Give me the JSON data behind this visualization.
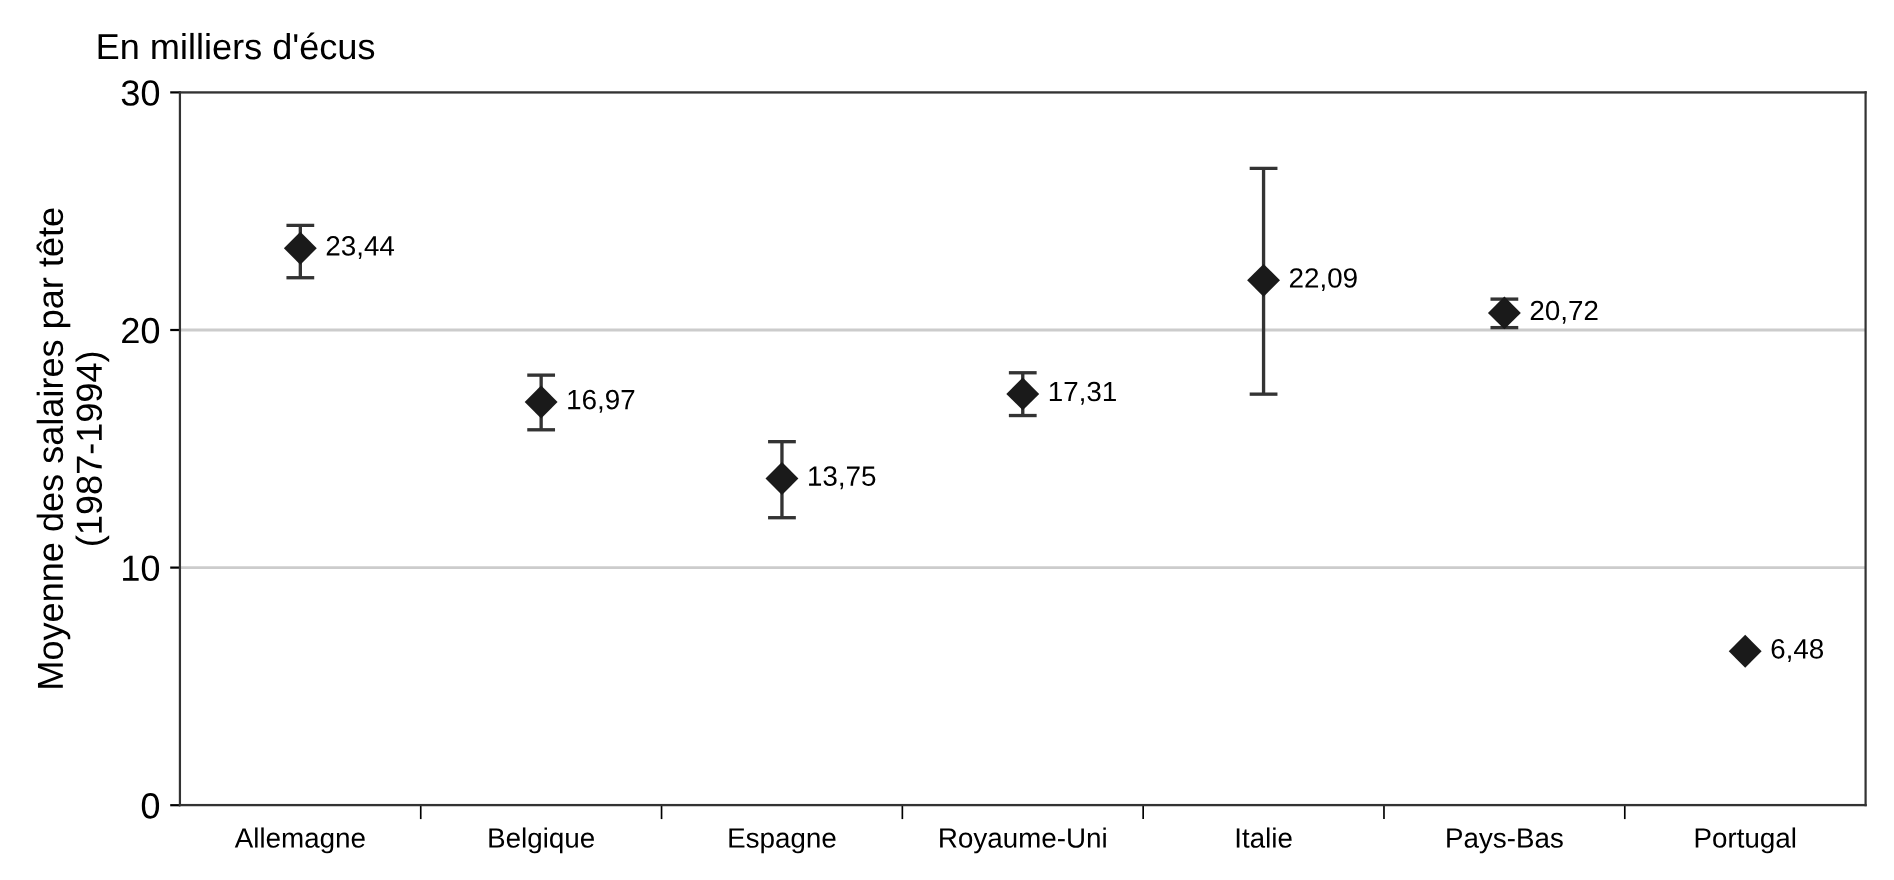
{
  "chart_data": {
    "type": "scatter",
    "title": "En milliers d'écus",
    "ylabel": "Moyenne des salaires par tête\n(1987-1994)",
    "categories": [
      "Allemagne",
      "Belgique",
      "Espagne",
      "Royaume-Uni",
      "Italie",
      "Pays-Bas",
      "Portugal"
    ],
    "values": [
      23.44,
      16.97,
      13.75,
      17.31,
      22.09,
      20.72,
      6.48
    ],
    "value_labels": [
      "23,44",
      "16,97",
      "13,75",
      "17,31",
      "22,09",
      "20,72",
      "6,48"
    ],
    "errors": [
      [
        22.2,
        24.4
      ],
      [
        15.8,
        18.1
      ],
      [
        12.1,
        15.3
      ],
      [
        16.4,
        18.2
      ],
      [
        17.3,
        26.8
      ],
      [
        20.1,
        21.3
      ],
      null
    ],
    "color": "#1a1a1a",
    "marker": "diamond",
    "ylim": [
      0,
      30
    ],
    "yticks": [
      0,
      10,
      20,
      30
    ],
    "grid": "y"
  }
}
